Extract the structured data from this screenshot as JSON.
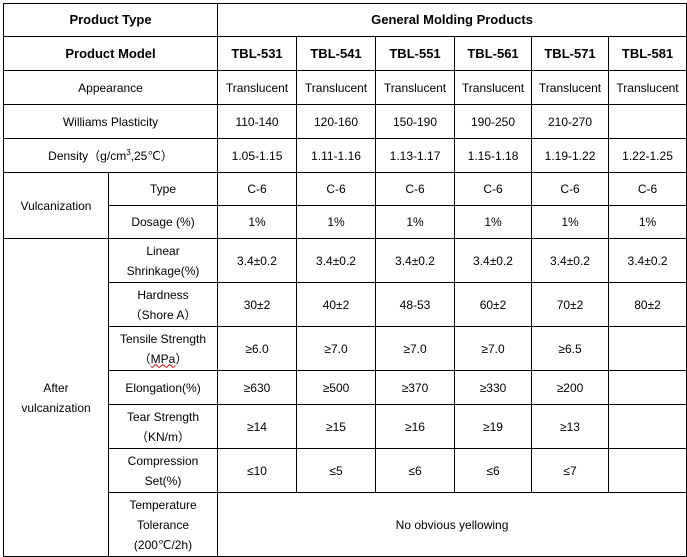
{
  "header": {
    "product_type_label": "Product Type",
    "product_type_value": "General Molding Products",
    "product_model_label": "Product Model",
    "models": [
      "TBL-531",
      "TBL-541",
      "TBL-551",
      "TBL-561",
      "TBL-571",
      "TBL-581"
    ]
  },
  "rows": {
    "appearance": {
      "label": "Appearance",
      "values": [
        "Translucent",
        "Translucent",
        "Translucent",
        "Translucent",
        "Translucent",
        "Translucent"
      ]
    },
    "plasticity": {
      "label": "Williams Plasticity",
      "values": [
        "110-140",
        "120-160",
        "150-190",
        "190-250",
        "210-270",
        ""
      ]
    },
    "density": {
      "label_pre": "Density（g/cm",
      "label_sup": "3",
      "label_post": ",25℃）",
      "values": [
        "1.05-1.15",
        "1.11-1.16",
        "1.13-1.17",
        "1.15-1.18",
        "1.19-1.22",
        "1.22-1.25"
      ]
    }
  },
  "vulcanization": {
    "group_label": "Vulcanization",
    "type": {
      "label": "Type",
      "values": [
        "C-6",
        "C-6",
        "C-6",
        "C-6",
        "C-6",
        "C-6"
      ]
    },
    "dosage": {
      "label": "Dosage (%)",
      "values": [
        "1%",
        "1%",
        "1%",
        "1%",
        "1%",
        "1%"
      ]
    }
  },
  "after": {
    "group_label_1": "After",
    "group_label_2": "vulcanization",
    "shrinkage": {
      "label_1": "Linear",
      "label_2": "Shrinkage(%)",
      "values": [
        "3.4±0.2",
        "3.4±0.2",
        "3.4±0.2",
        "3.4±0.2",
        "3.4±0.2",
        "3.4±0.2"
      ]
    },
    "hardness": {
      "label_1": "Hardness",
      "label_2": "（Shore A）",
      "values": [
        "30±2",
        "40±2",
        "48-53",
        "60±2",
        "70±2",
        "80±2"
      ]
    },
    "tensile": {
      "label_1": "Tensile Strength",
      "label_2_pre": "（",
      "label_2_mid": "MPa",
      "label_2_post": "）",
      "values": [
        "≥6.0",
        "≥7.0",
        "≥7.0",
        "≥7.0",
        "≥6.5",
        ""
      ]
    },
    "elongation": {
      "label": "Elongation(%)",
      "values": [
        "≥630",
        "≥500",
        "≥370",
        "≥330",
        "≥200",
        ""
      ]
    },
    "tear": {
      "label_1": "Tear Strength",
      "label_2": "（KN/m）",
      "values": [
        "≥14",
        "≥15",
        "≥16",
        "≥19",
        "≥13",
        ""
      ]
    },
    "compression": {
      "label_1": "Compression",
      "label_2": "Set(%)",
      "values": [
        "≤10",
        "≤5",
        "≤6",
        "≤6",
        "≤7",
        ""
      ]
    },
    "temperature": {
      "label_1": "Temperature",
      "label_2": "Tolerance",
      "label_3": "(200℃/2h)",
      "value": "No obvious yellowing"
    }
  }
}
